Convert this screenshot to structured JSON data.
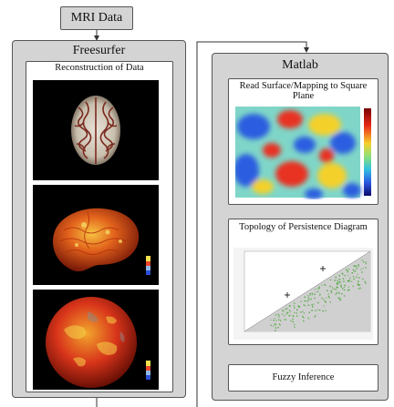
{
  "nodes": {
    "mri_data": "MRI Data",
    "freesurfer": "Freesurfer",
    "reconstruction": "Reconstruction of Data",
    "matlab": "Matlab",
    "read_surface": "Read Surface/Mapping to Square Plane",
    "topology": "Topology of Persistence Diagram",
    "fuzzy": "Fuzzy Inference"
  },
  "figures": {
    "brain_images": [
      "mri-axial-slice",
      "cortical-surface-thickness-map",
      "inflated-sphere-thickness-map"
    ],
    "surface_map": "square-plane-heatmap",
    "persistence": "persistence-scatter-diagram"
  },
  "colors": {
    "box_fill": "#d4d4d4",
    "inner_fill": "#ffffff",
    "border": "#555555",
    "image_bg": "#000000",
    "scatter_green": "#3fa32c"
  }
}
